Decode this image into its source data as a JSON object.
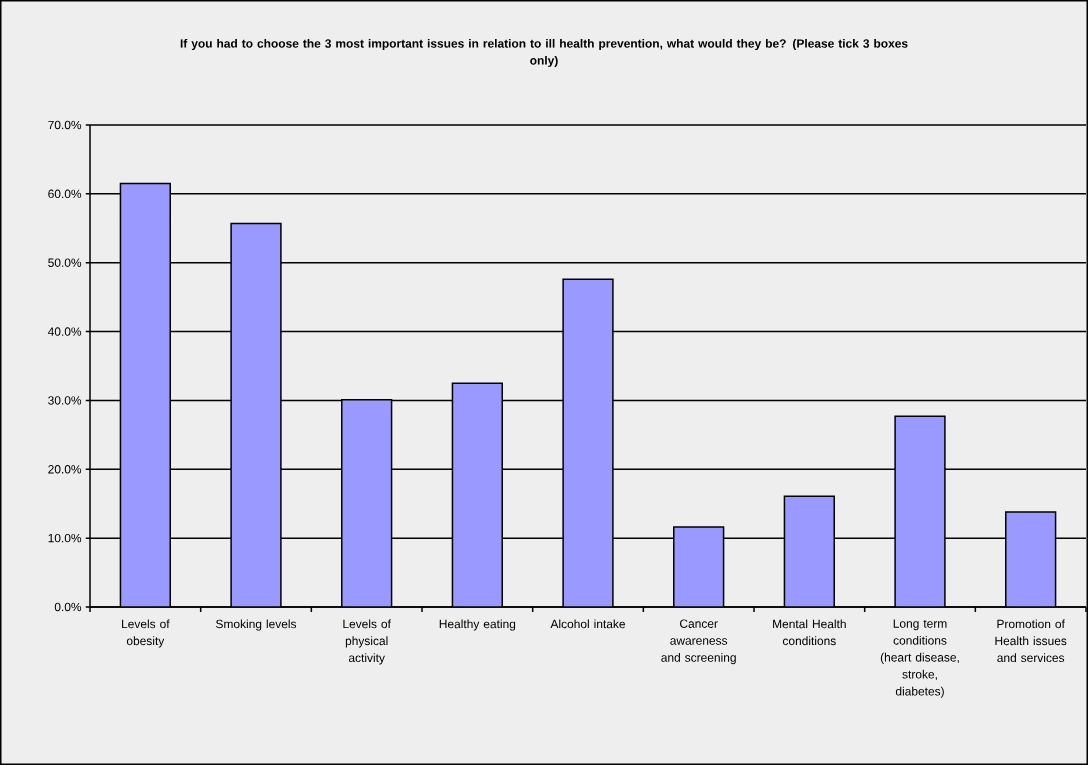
{
  "chart_data": {
    "type": "bar",
    "title": "If you had to choose the 3 most important issues in relation to ill health prevention, what would they be? (Please tick 3 boxes only)",
    "categories": [
      "Levels of obesity",
      "Smoking levels",
      "Levels of physical activity",
      "Healthy eating",
      "Alcohol intake",
      "Cancer awareness and screening",
      "Mental Health conditions",
      "Long term conditions (heart disease, stroke, diabetes)",
      "Promotion of Health issues and services"
    ],
    "values": [
      61.5,
      55.7,
      30.1,
      32.5,
      47.6,
      11.6,
      16.1,
      27.7,
      13.8
    ],
    "color": "#9999ff",
    "ylim": [
      0,
      70
    ],
    "yticks": [
      {
        "value": 0,
        "label": "0.0%"
      },
      {
        "value": 10,
        "label": "10.0%"
      },
      {
        "value": 20,
        "label": "20.0%"
      },
      {
        "value": 30,
        "label": "30.0%"
      },
      {
        "value": 40,
        "label": "40.0%"
      },
      {
        "value": 50,
        "label": "50.0%"
      },
      {
        "value": 60,
        "label": "60.0%"
      },
      {
        "value": 70,
        "label": "70.0%"
      }
    ],
    "grid": "y"
  }
}
